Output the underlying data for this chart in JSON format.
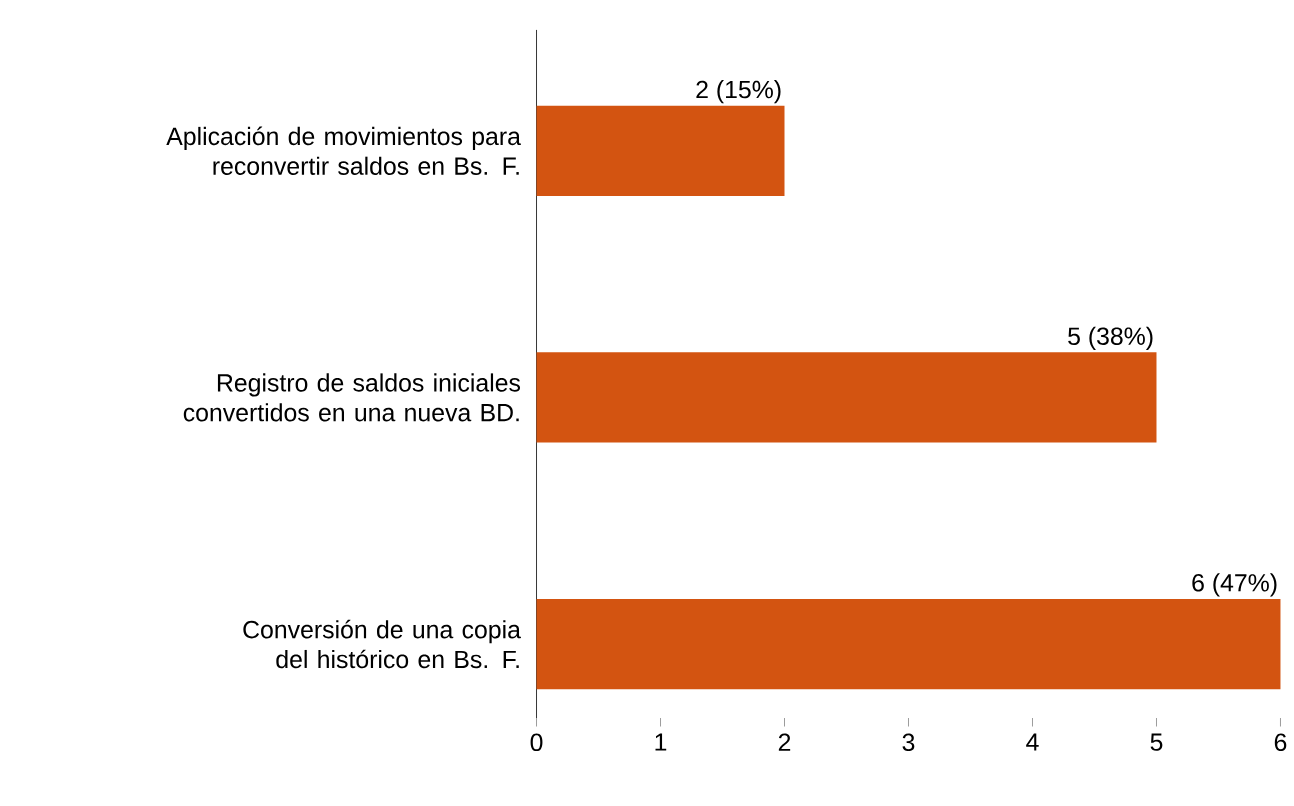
{
  "chart_data": {
    "type": "bar",
    "orientation": "horizontal",
    "categories": [
      "Aplicación de movimientos para reconvertir saldos en Bs. F.",
      "Registro de saldos iniciales convertidos en una nueva BD.",
      "Conversión de una copia del histórico en Bs. F."
    ],
    "values": [
      2,
      5,
      6
    ],
    "color": "#d35411",
    "value_labels": [
      "2 (15%)",
      "5 (38%)",
      "6 (47%)"
    ],
    "xlim": [
      0,
      6
    ],
    "xticks": [
      0,
      1,
      2,
      3,
      4,
      5,
      6
    ],
    "grid": false
  }
}
